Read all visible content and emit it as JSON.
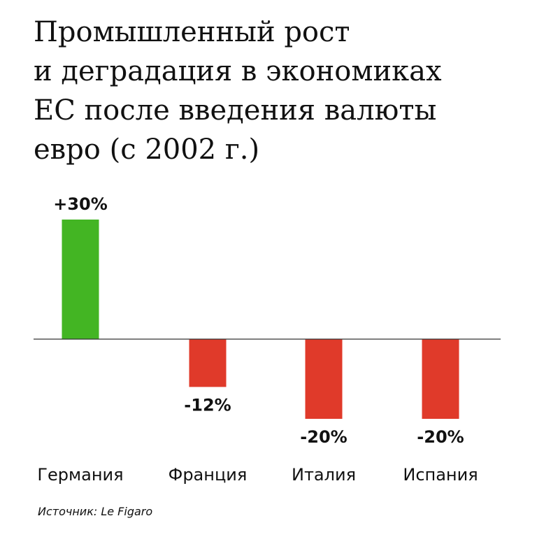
{
  "title_lines": [
    "Промышленный рост",
    "и деградация в экономиках",
    "ЕС после введения валюты",
    "евро (с 2002 г.)"
  ],
  "source": "Источник: Le Figaro",
  "colors": {
    "positive": "#43b523",
    "negative": "#e03a2a",
    "baseline": "#333333",
    "text": "#111111"
  },
  "chart_data": {
    "type": "bar",
    "title": "Промышленный рост и деградация в экономиках ЕС после введения валюты евро (с 2002 г.)",
    "categories": [
      "Германия",
      "Франция",
      "Италия",
      "Испания"
    ],
    "values": [
      30,
      -12,
      -20,
      -20
    ],
    "value_labels": [
      "+30%",
      "-12%",
      "-20%",
      "-20%"
    ],
    "unit": "%",
    "xlabel": "",
    "ylabel": "",
    "grid": false,
    "legend": "none"
  }
}
